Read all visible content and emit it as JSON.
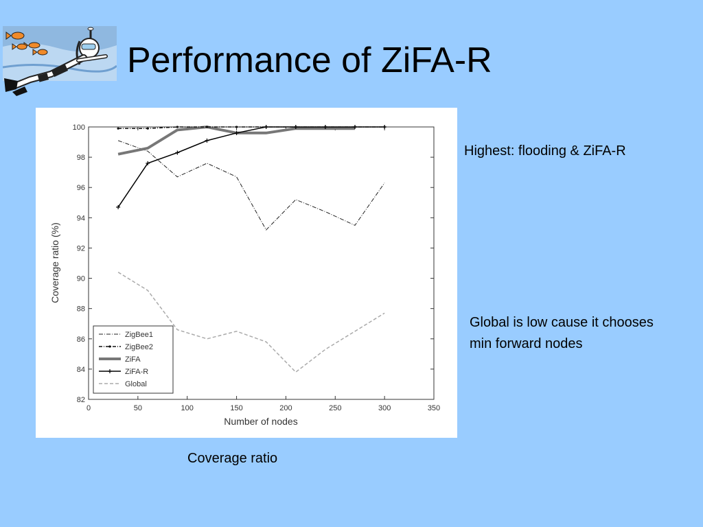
{
  "slide": {
    "title": "Performance of ZiFA-R",
    "note_highest": "Highest: flooding & ZiFA-R",
    "note_global": "Global is low cause it chooses min forward nodes",
    "caption": "Coverage ratio"
  },
  "colors": {
    "background": "#99ccff",
    "chart_background": "#ffffff",
    "zigbee1": "#222222",
    "zigbee2": "#111111",
    "zifa": "#777777",
    "zifa_r": "#000000",
    "global": "#aaaaaa"
  },
  "logo": {
    "icon": "snorkeling-diver-with-fish-icon"
  },
  "chart_data": {
    "type": "line",
    "xlabel": "Number of nodes",
    "ylabel": "Coverage ratio (%)",
    "xlim": [
      0,
      350
    ],
    "ylim": [
      82,
      100
    ],
    "xticks": [
      0,
      50,
      100,
      150,
      200,
      250,
      300,
      350
    ],
    "yticks": [
      82,
      84,
      86,
      88,
      90,
      92,
      94,
      96,
      98,
      100
    ],
    "grid": false,
    "legend_position": "bottom-left",
    "series": [
      {
        "name": "ZigBee1",
        "style": "dash-dot",
        "x": [
          30,
          60,
          90,
          120,
          150,
          180,
          210,
          240,
          270,
          300
        ],
        "values": [
          99.1,
          98.4,
          96.7,
          97.6,
          96.7,
          93.2,
          95.2,
          94.4,
          93.5,
          96.3
        ]
      },
      {
        "name": "ZigBee2",
        "style": "dash-dot-marker",
        "x": [
          30,
          60,
          90,
          120,
          150,
          180,
          210,
          240,
          270,
          300
        ],
        "values": [
          99.9,
          99.9,
          100,
          100,
          100,
          100,
          100,
          100,
          100,
          100
        ]
      },
      {
        "name": "ZiFA",
        "style": "thick-solid",
        "x": [
          30,
          60,
          90,
          120,
          150,
          180,
          210,
          240,
          270
        ],
        "values": [
          98.2,
          98.6,
          99.8,
          100,
          99.6,
          99.6,
          99.9,
          99.9,
          99.9
        ]
      },
      {
        "name": "ZiFA-R",
        "style": "solid-plus",
        "x": [
          30,
          60,
          90,
          120,
          150,
          180,
          210,
          240,
          270,
          300
        ],
        "values": [
          94.7,
          97.6,
          98.3,
          99.1,
          99.6,
          100,
          100,
          100,
          100,
          100
        ]
      },
      {
        "name": "Global",
        "style": "dashed-light",
        "x": [
          30,
          60,
          90,
          120,
          150,
          180,
          210,
          240,
          270,
          300
        ],
        "values": [
          90.4,
          89.2,
          86.6,
          86.0,
          86.5,
          85.8,
          83.8,
          85.3,
          86.5,
          87.7
        ]
      }
    ]
  }
}
